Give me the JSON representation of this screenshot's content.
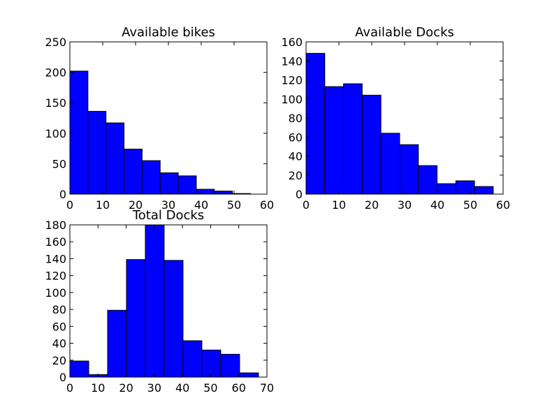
{
  "figure": {
    "background": "#ffffff",
    "bar_color": "#0000ff",
    "edge_color": "#000000"
  },
  "chart_data": [
    {
      "type": "bar",
      "title": "Available bikes",
      "bin_edges": [
        0,
        5.5,
        11,
        16.5,
        22,
        27.5,
        33,
        38.5,
        44,
        49.5,
        55
      ],
      "values": [
        202,
        136,
        117,
        74,
        55,
        35,
        30,
        8,
        5,
        1
      ],
      "xlim": [
        0,
        60
      ],
      "ylim": [
        0,
        250
      ],
      "xticks": [
        0,
        10,
        20,
        30,
        40,
        50,
        60
      ],
      "yticks": [
        0,
        50,
        100,
        150,
        200,
        250
      ],
      "grid": false
    },
    {
      "type": "bar",
      "title": "Available Docks",
      "bin_edges": [
        0,
        5.7,
        11.4,
        17.1,
        22.8,
        28.5,
        34.2,
        39.9,
        45.6,
        51.3,
        57
      ],
      "values": [
        148,
        113,
        116,
        104,
        64,
        52,
        30,
        11,
        14,
        8
      ],
      "xlim": [
        0,
        60
      ],
      "ylim": [
        0,
        160
      ],
      "xticks": [
        0,
        10,
        20,
        30,
        40,
        50,
        60
      ],
      "yticks": [
        0,
        20,
        40,
        60,
        80,
        100,
        120,
        140,
        160
      ],
      "grid": false
    },
    {
      "type": "bar",
      "title": "Total Docks",
      "bin_edges": [
        0,
        6.7,
        13.4,
        20.1,
        26.8,
        33.5,
        40.2,
        46.9,
        53.6,
        60.3,
        67
      ],
      "values": [
        19,
        3,
        79,
        139,
        180,
        138,
        43,
        32,
        27,
        5
      ],
      "xlim": [
        0,
        70
      ],
      "ylim": [
        0,
        180
      ],
      "xticks": [
        0,
        10,
        20,
        30,
        40,
        50,
        60,
        70
      ],
      "yticks": [
        0,
        20,
        40,
        60,
        80,
        100,
        120,
        140,
        160,
        180
      ],
      "grid": false
    }
  ]
}
